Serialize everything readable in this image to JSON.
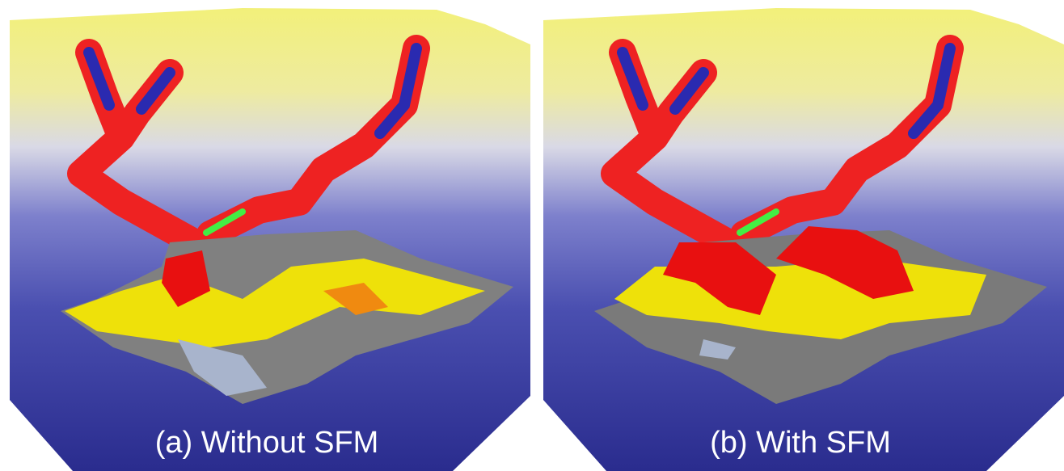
{
  "panels": [
    {
      "caption": "(a) Without SFM"
    },
    {
      "caption": "(b) With SFM"
    }
  ]
}
